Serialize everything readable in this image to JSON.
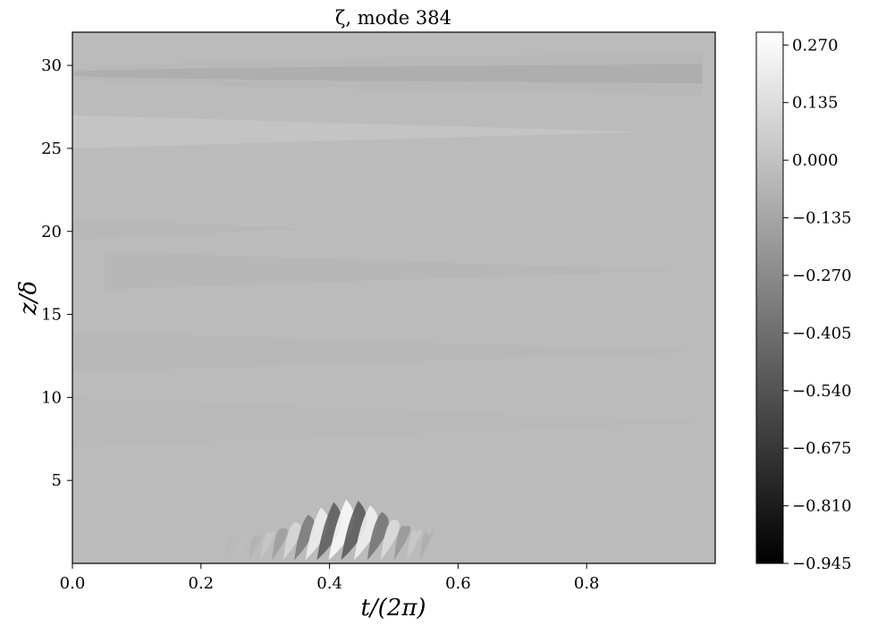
{
  "chart_data": {
    "type": "heatmap",
    "title": "ζ, mode 384",
    "xlabel": "t/(2π)",
    "ylabel": "z/δ",
    "xlim": [
      0.0,
      1.0
    ],
    "ylim": [
      0.0,
      32.0
    ],
    "xticks": [
      {
        "value": 0.0,
        "label": "0.0"
      },
      {
        "value": 0.2,
        "label": "0.2"
      },
      {
        "value": 0.4,
        "label": "0.4"
      },
      {
        "value": 0.6,
        "label": "0.6"
      },
      {
        "value": 0.8,
        "label": "0.8"
      }
    ],
    "yticks": [
      {
        "value": 5,
        "label": "5"
      },
      {
        "value": 10,
        "label": "10"
      },
      {
        "value": 15,
        "label": "15"
      },
      {
        "value": 20,
        "label": "20"
      },
      {
        "value": 25,
        "label": "25"
      },
      {
        "value": 30,
        "label": "30"
      }
    ],
    "colormap": "gray",
    "colorbar": {
      "min": -0.945,
      "max": 0.3,
      "ticks": [
        {
          "value": 0.27,
          "label": "0.270"
        },
        {
          "value": 0.135,
          "label": "0.135"
        },
        {
          "value": 0.0,
          "label": "0.000"
        },
        {
          "value": -0.135,
          "label": "−0.135"
        },
        {
          "value": -0.27,
          "label": "−0.270"
        },
        {
          "value": -0.405,
          "label": "−0.405"
        },
        {
          "value": -0.54,
          "label": "−0.540"
        },
        {
          "value": -0.675,
          "label": "−0.675"
        },
        {
          "value": -0.81,
          "label": "−0.810"
        },
        {
          "value": -0.945,
          "label": "−0.945"
        }
      ]
    },
    "background_value": -0.03,
    "features": [
      {
        "kind": "jet",
        "value": -0.08,
        "z": 29.5,
        "t_start": 0.0,
        "t_end": 0.98,
        "halfwidth_z": [
          0.2,
          1.3
        ]
      },
      {
        "kind": "band",
        "value": 0.012,
        "z_start": 27.0,
        "z_end": 25.0,
        "t_start": 0.0,
        "t_end": 0.89
      },
      {
        "kind": "band",
        "value": -0.045,
        "z_start": 20.8,
        "z_end": 19.5,
        "t_start": 0.0,
        "t_end": 0.37
      },
      {
        "kind": "band",
        "value": -0.05,
        "z_start": 16.5,
        "z_end": 18.8,
        "t_start": 0.05,
        "t_end": 0.95
      },
      {
        "kind": "band",
        "value": -0.045,
        "z_start": 11.5,
        "z_end": 14.0,
        "t_start": 0.0,
        "t_end": 1.0
      },
      {
        "kind": "band",
        "value": -0.04,
        "z_start": 7.0,
        "z_end": 10.0,
        "t_start": 0.0,
        "t_end": 1.0
      },
      {
        "kind": "wavepacket",
        "amplitude": 0.3,
        "t_start": 0.15,
        "t_end": 0.55,
        "t_peak": 0.42,
        "z_peak": 2.0,
        "z_extent": 7.0
      }
    ]
  }
}
